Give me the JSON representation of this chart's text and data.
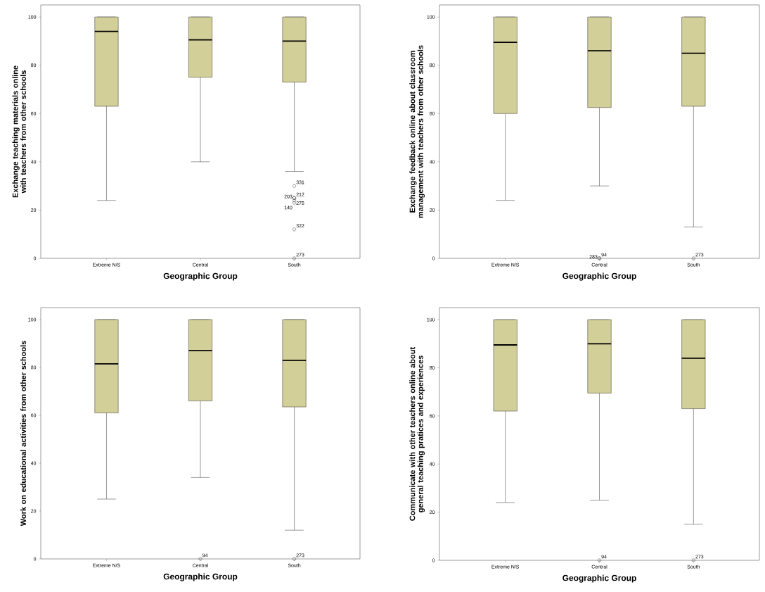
{
  "chart_data": [
    {
      "type": "box",
      "categories": [
        "Extreme N/S",
        "Central",
        "South"
      ],
      "xlabel": "Geographic Group",
      "ylabel": "Exchange teaching materials online with teachers from other schools",
      "ylim": [
        0,
        105
      ],
      "yticks": [
        0,
        20,
        40,
        60,
        80,
        100
      ],
      "grid": false,
      "marker": "circle",
      "series": [
        {
          "color": "#d3cf99",
          "boxes": [
            {
              "low": 24,
              "q1": 63,
              "median": 94,
              "q3": 100,
              "high": 100
            },
            {
              "low": 40,
              "q1": 75,
              "median": 90.5,
              "q3": 100,
              "high": 100
            },
            {
              "low": 36,
              "q1": 73,
              "median": 90,
              "q3": 100,
              "high": 100,
              "outliers": [
                30,
                25,
                25,
                24,
                23,
                12,
                0
              ]
            }
          ]
        }
      ],
      "annotations": [
        "331",
        "212",
        "203",
        "275",
        "140",
        "322",
        "273"
      ]
    },
    {
      "type": "box",
      "categories": [
        "Extreme N/S",
        "Central",
        "South"
      ],
      "xlabel": "Geographic Group",
      "ylabel": "Exchange feedback online about classroom management with teachers from other schools",
      "ylim": [
        0,
        105
      ],
      "yticks": [
        0,
        20,
        40,
        60,
        80,
        100
      ],
      "grid": false,
      "marker": "circle",
      "series": [
        {
          "color": "#d3cf99",
          "boxes": [
            {
              "low": 24,
              "q1": 60,
              "median": 89.5,
              "q3": 100,
              "high": 100
            },
            {
              "low": 30,
              "q1": 62.5,
              "median": 86,
              "q3": 100,
              "high": 100,
              "outliers": [
                0,
                0
              ]
            },
            {
              "low": 13,
              "q1": 63,
              "median": 85,
              "q3": 100,
              "high": 100,
              "outliers": [
                0
              ]
            }
          ]
        }
      ],
      "annotations": [
        "94",
        "283",
        "273"
      ]
    },
    {
      "type": "box",
      "categories": [
        "Extreme N/S",
        "Central",
        "South"
      ],
      "xlabel": "Geographic Group",
      "ylabel": "Work on educational activities from other schools",
      "ylim": [
        0,
        105
      ],
      "yticks": [
        0,
        20,
        40,
        60,
        80,
        100
      ],
      "grid": false,
      "marker": "circle",
      "series": [
        {
          "color": "#d3cf99",
          "boxes": [
            {
              "low": 25,
              "q1": 61,
              "median": 81.5,
              "q3": 100,
              "high": 100
            },
            {
              "low": 34,
              "q1": 66,
              "median": 87,
              "q3": 100,
              "high": 100,
              "outliers": [
                0
              ]
            },
            {
              "low": 12,
              "q1": 63.5,
              "median": 83,
              "q3": 100,
              "high": 100,
              "outliers": [
                0
              ]
            }
          ]
        }
      ],
      "annotations": [
        "94",
        "273"
      ]
    },
    {
      "type": "box",
      "categories": [
        "Extreme N/S",
        "Central",
        "South"
      ],
      "xlabel": "Geographic Group",
      "ylabel": "Communicate with other teachers online about general teaching pratices and experiences",
      "ylim": [
        0,
        105
      ],
      "yticks": [
        0,
        20,
        40,
        60,
        80,
        100
      ],
      "grid": false,
      "marker": "circle",
      "series": [
        {
          "color": "#d3cf99",
          "boxes": [
            {
              "low": 24,
              "q1": 62,
              "median": 89.5,
              "q3": 100,
              "high": 100
            },
            {
              "low": 25,
              "q1": 69.5,
              "median": 90,
              "q3": 100,
              "high": 100,
              "outliers": [
                0
              ]
            },
            {
              "low": 15,
              "q1": 63,
              "median": 84,
              "q3": 100,
              "high": 100,
              "outliers": [
                0
              ]
            }
          ]
        }
      ],
      "annotations": [
        "94",
        "273"
      ]
    }
  ]
}
